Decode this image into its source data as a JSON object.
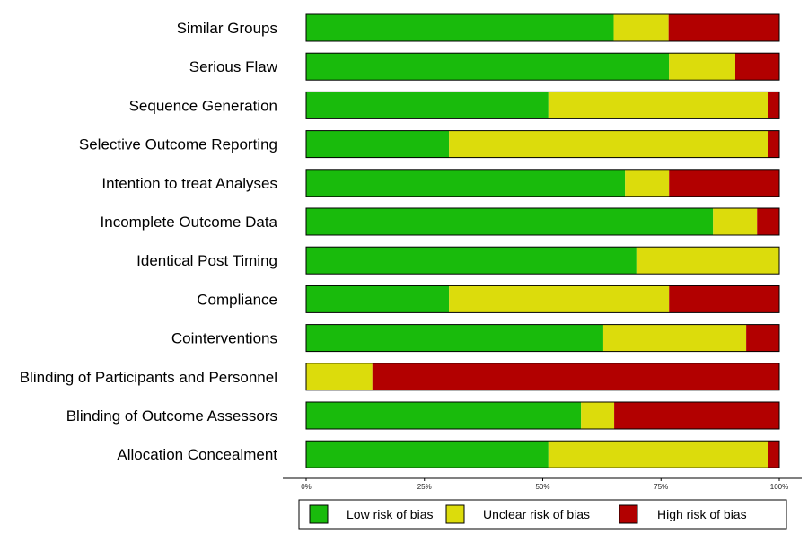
{
  "chart_data": {
    "type": "bar",
    "orientation": "horizontal",
    "stacked": true,
    "xlim": [
      0,
      100
    ],
    "x_ticks": [
      "0%",
      "25%",
      "50%",
      "75%",
      "100%"
    ],
    "categories": [
      "Similar Groups",
      "Serious Flaw",
      "Sequence Generation",
      "Selective Outcome Reporting",
      "Intention to treat Analyses",
      "Incomplete Outcome Data",
      "Identical Post Timing",
      "Compliance",
      "Cointerventions",
      "Blinding of Participants and Personnel",
      "Blinding of Outcome Assessors",
      "Allocation Concealment"
    ],
    "series": [
      {
        "name": "Low risk of bias",
        "color": "#19bb0c",
        "values": [
          65,
          76.7,
          51.2,
          30.2,
          67.4,
          86,
          69.8,
          30.2,
          62.8,
          0,
          58.1,
          51.2
        ]
      },
      {
        "name": "Unclear risk of bias",
        "color": "#dcdc0c",
        "values": [
          11.6,
          14,
          46.5,
          67.4,
          9.3,
          9.3,
          30.2,
          46.5,
          30.2,
          14,
          7,
          46.5
        ]
      },
      {
        "name": "High risk of bias",
        "color": "#b20000",
        "values": [
          23.4,
          9.3,
          2.3,
          2.4,
          23.3,
          4.7,
          0,
          23.3,
          7,
          86,
          34.9,
          2.3
        ]
      }
    ],
    "legend_position": "bottom",
    "grid": false
  }
}
